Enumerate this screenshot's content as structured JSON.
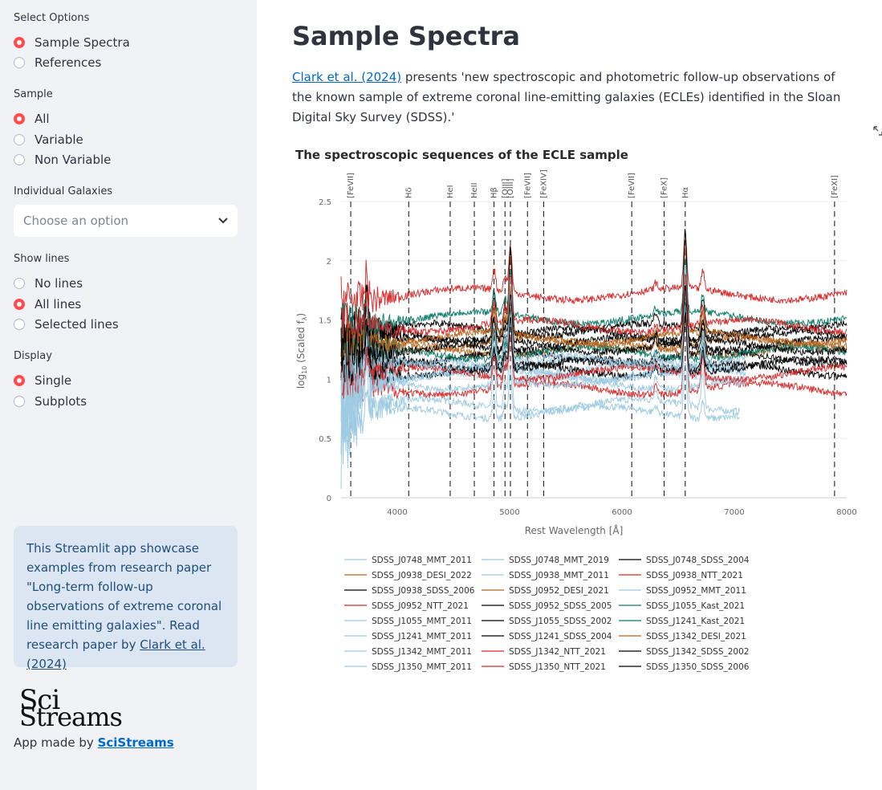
{
  "sidebar": {
    "select_options": {
      "label": "Select Options",
      "options": [
        "Sample Spectra",
        "References"
      ],
      "selected": 0
    },
    "sample": {
      "label": "Sample",
      "options": [
        "All",
        "Variable",
        "Non Variable"
      ],
      "selected": 0
    },
    "galaxies": {
      "label": "Individual Galaxies",
      "placeholder": "Choose an option"
    },
    "show_lines": {
      "label": "Show lines",
      "options": [
        "No lines",
        "All lines",
        "Selected lines"
      ],
      "selected": 1
    },
    "display": {
      "label": "Display",
      "options": [
        "Single",
        "Subplots"
      ],
      "selected": 0
    },
    "info": {
      "text": "This Streamlit app showcase examples from research paper \"Long-term follow-up observations of extreme coronal line emitting galaxies\". Read research paper by ",
      "link": "Clark et al. (2024)"
    },
    "logo": {
      "line1": "Sci",
      "line2": "Streams"
    },
    "credit": {
      "prefix": "App made by ",
      "link": "SciStreams"
    }
  },
  "main": {
    "title": "Sample Spectra",
    "intro_link": "Clark et al. (2024)",
    "intro_text": " presents 'new spectroscopic and photometric follow-up observations of the known sample of extreme coronal line-emitting galaxies (ECLEs) identified in the Sloan Digital Sky Survey (SDSS).'"
  },
  "colors": {
    "accent": "#ff4b4b",
    "link": "#0068c9",
    "info_bg": "#dbe6f2",
    "sidebar_bg": "#f0f2f6"
  },
  "chart_data": {
    "type": "line",
    "title": "The spectroscopic sequences of the ECLE sample",
    "xlabel": "Rest Wavelength [Å]",
    "ylabel_main": "log",
    "ylabel_sub": "10",
    "ylabel_rest": " (Scaled f",
    "ylabel_sub2": "λ",
    "ylabel_end": ")",
    "xlim": [
      3500,
      8000
    ],
    "ylim": [
      0,
      2.5
    ],
    "x_ticks": [
      4000,
      5000,
      6000,
      7000,
      8000
    ],
    "y_ticks": [
      0,
      0.5,
      1,
      1.5,
      2,
      2.5
    ],
    "y_tick_labels": [
      "0",
      "0.5",
      "1",
      "1.5",
      "2",
      "2.5"
    ],
    "grid": true,
    "legend_position": "bottom",
    "lines": [
      {
        "label": "[FeVII]",
        "x": 3586
      },
      {
        "label": "Hδ",
        "x": 4102
      },
      {
        "label": "HeI",
        "x": 4471
      },
      {
        "label": "HeII",
        "x": 4686
      },
      {
        "label": "Hβ",
        "x": 4861
      },
      {
        "label": "[OIII]",
        "x": 4959
      },
      {
        "label": "[OIII]",
        "x": 5007
      },
      {
        "label": "[FeVII]",
        "x": 5159
      },
      {
        "label": "[FeXIV]",
        "x": 5303
      },
      {
        "label": "[FeVII]",
        "x": 6087
      },
      {
        "label": "[FeX]",
        "x": 6375
      },
      {
        "label": "Hα",
        "x": 6563
      },
      {
        "label": "[FeXI]",
        "x": 7892
      }
    ],
    "series": [
      {
        "name": "SDSS_J0748_MMT_2011",
        "color": "#9ecae1",
        "level": 0.78,
        "xmax": 7050
      },
      {
        "name": "SDSS_J0748_MMT_2019",
        "color": "#9ecae1",
        "level": 0.72,
        "xmax": 7050
      },
      {
        "name": "SDSS_J0748_SDSS_2004",
        "color": "#000000",
        "level": 1.38,
        "xmax": 8000
      },
      {
        "name": "SDSS_J0938_DESI_2022",
        "color": "#b5651d",
        "level": 1.3,
        "xmax": 8000
      },
      {
        "name": "SDSS_J0938_MMT_2011",
        "color": "#9ecae1",
        "level": 1.05,
        "xmax": 7100
      },
      {
        "name": "SDSS_J0938_NTT_2021",
        "color": "#d62728",
        "level": 1.72,
        "xmax": 8000
      },
      {
        "name": "SDSS_J0938_SDSS_2006",
        "color": "#000000",
        "level": 1.42,
        "xmax": 8000
      },
      {
        "name": "SDSS_J0952_DESI_2021",
        "color": "#b5651d",
        "level": 1.25,
        "xmax": 8000
      },
      {
        "name": "SDSS_J0952_MMT_2011",
        "color": "#9ecae1",
        "level": 1.12,
        "xmax": 7100
      },
      {
        "name": "SDSS_J0952_NTT_2021",
        "color": "#d62728",
        "level": 0.92,
        "xmax": 8000
      },
      {
        "name": "SDSS_J0952_SDSS_2005",
        "color": "#000000",
        "level": 1.18,
        "xmax": 8000
      },
      {
        "name": "SDSS_J1055_Kast_2021",
        "color": "#0b7a68",
        "level": 1.52,
        "xmax": 8000
      },
      {
        "name": "SDSS_J1055_MMT_2011",
        "color": "#9ecae1",
        "level": 1.1,
        "xmax": 7100
      },
      {
        "name": "SDSS_J1055_SDSS_2002",
        "color": "#000000",
        "level": 1.3,
        "xmax": 8000
      },
      {
        "name": "SDSS_J1241_Kast_2021",
        "color": "#0b7a68",
        "level": 1.22,
        "xmax": 8000
      },
      {
        "name": "SDSS_J1241_MMT_2011",
        "color": "#9ecae1",
        "level": 0.97,
        "xmax": 7100
      },
      {
        "name": "SDSS_J1241_SDSS_2004",
        "color": "#000000",
        "level": 1.08,
        "xmax": 8000
      },
      {
        "name": "SDSS_J1342_DESI_2021",
        "color": "#b5651d",
        "level": 1.35,
        "xmax": 8000
      },
      {
        "name": "SDSS_J1342_MMT_2011",
        "color": "#9ecae1",
        "level": 1.0,
        "xmax": 7100
      },
      {
        "name": "SDSS_J1342_NTT_2021",
        "color": "#d62728",
        "level": 1.05,
        "xmax": 8000
      },
      {
        "name": "SDSS_J1342_SDSS_2002",
        "color": "#000000",
        "level": 1.12,
        "xmax": 8000
      },
      {
        "name": "SDSS_J1350_MMT_2011",
        "color": "#9ecae1",
        "level": 1.15,
        "xmax": 7100
      },
      {
        "name": "SDSS_J1350_NTT_2021",
        "color": "#d62728",
        "level": 1.45,
        "xmax": 8000
      },
      {
        "name": "SDSS_J1350_SDSS_2006",
        "color": "#000000",
        "level": 1.28,
        "xmax": 8000
      }
    ]
  }
}
